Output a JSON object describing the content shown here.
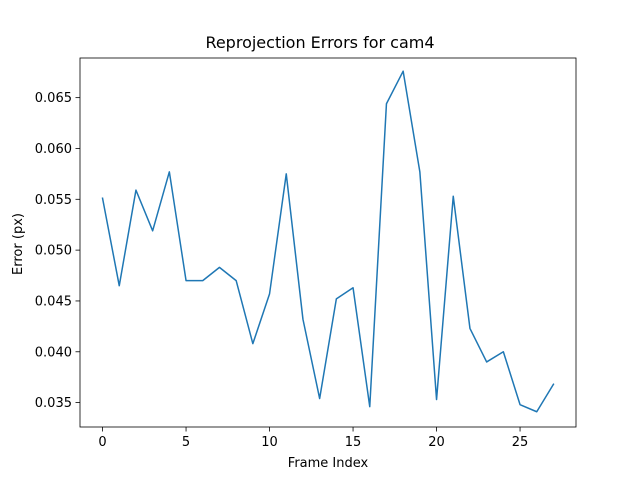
{
  "chart_data": {
    "type": "line",
    "title": "Reprojection Errors for cam4",
    "xlabel": "Frame Index",
    "ylabel": "Error (px)",
    "xlim": [
      -1.35,
      28.35
    ],
    "ylim": [
      0.0326,
      0.0689
    ],
    "xticks": [
      0,
      5,
      10,
      15,
      20,
      25
    ],
    "xtick_labels": [
      "0",
      "5",
      "10",
      "15",
      "20",
      "25"
    ],
    "yticks": [
      0.035,
      0.04,
      0.045,
      0.05,
      0.055,
      0.06,
      0.065
    ],
    "ytick_labels": [
      "0.035",
      "0.040",
      "0.045",
      "0.050",
      "0.055",
      "0.060",
      "0.065"
    ],
    "grid": false,
    "series": [
      {
        "color": "#1f77b4",
        "x": [
          0,
          1,
          2,
          3,
          4,
          5,
          6,
          7,
          8,
          9,
          10,
          11,
          12,
          13,
          14,
          15,
          16,
          17,
          18,
          19,
          20,
          21,
          22,
          23,
          24,
          25,
          26,
          27
        ],
        "values": [
          0.0551,
          0.0465,
          0.0559,
          0.0519,
          0.0577,
          0.047,
          0.047,
          0.0483,
          0.047,
          0.0408,
          0.0457,
          0.0575,
          0.0432,
          0.0354,
          0.0452,
          0.0463,
          0.0346,
          0.0644,
          0.0676,
          0.0577,
          0.0353,
          0.0553,
          0.0423,
          0.039,
          0.04,
          0.0348,
          0.0341,
          0.0368
        ]
      }
    ]
  }
}
